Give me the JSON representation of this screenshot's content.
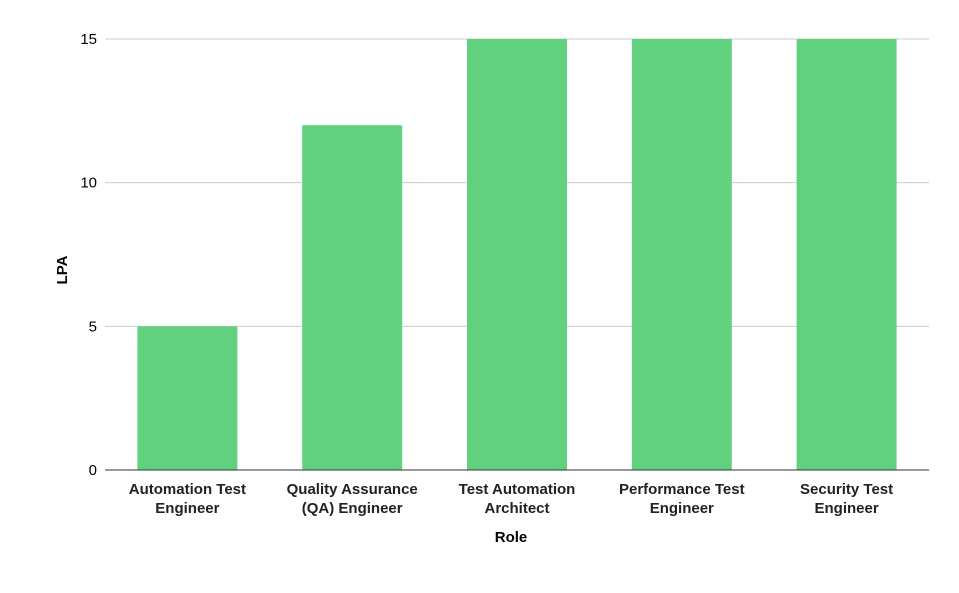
{
  "chart_data": {
    "type": "bar",
    "title": "",
    "xlabel": "Role",
    "ylabel": "LPA",
    "categories": [
      [
        "Automation Test",
        "Engineer"
      ],
      [
        "Quality Assurance",
        "(QA) Engineer"
      ],
      [
        "Test Automation",
        "Architect"
      ],
      [
        "Performance Test",
        "Engineer"
      ],
      [
        "Security Test",
        "Engineer"
      ]
    ],
    "values": [
      5,
      12,
      15,
      15,
      15
    ],
    "ylim": [
      0,
      15
    ],
    "yticks": [
      0,
      5,
      10,
      15
    ],
    "grid": true,
    "legend": "none",
    "bar_color": "#61d180"
  }
}
